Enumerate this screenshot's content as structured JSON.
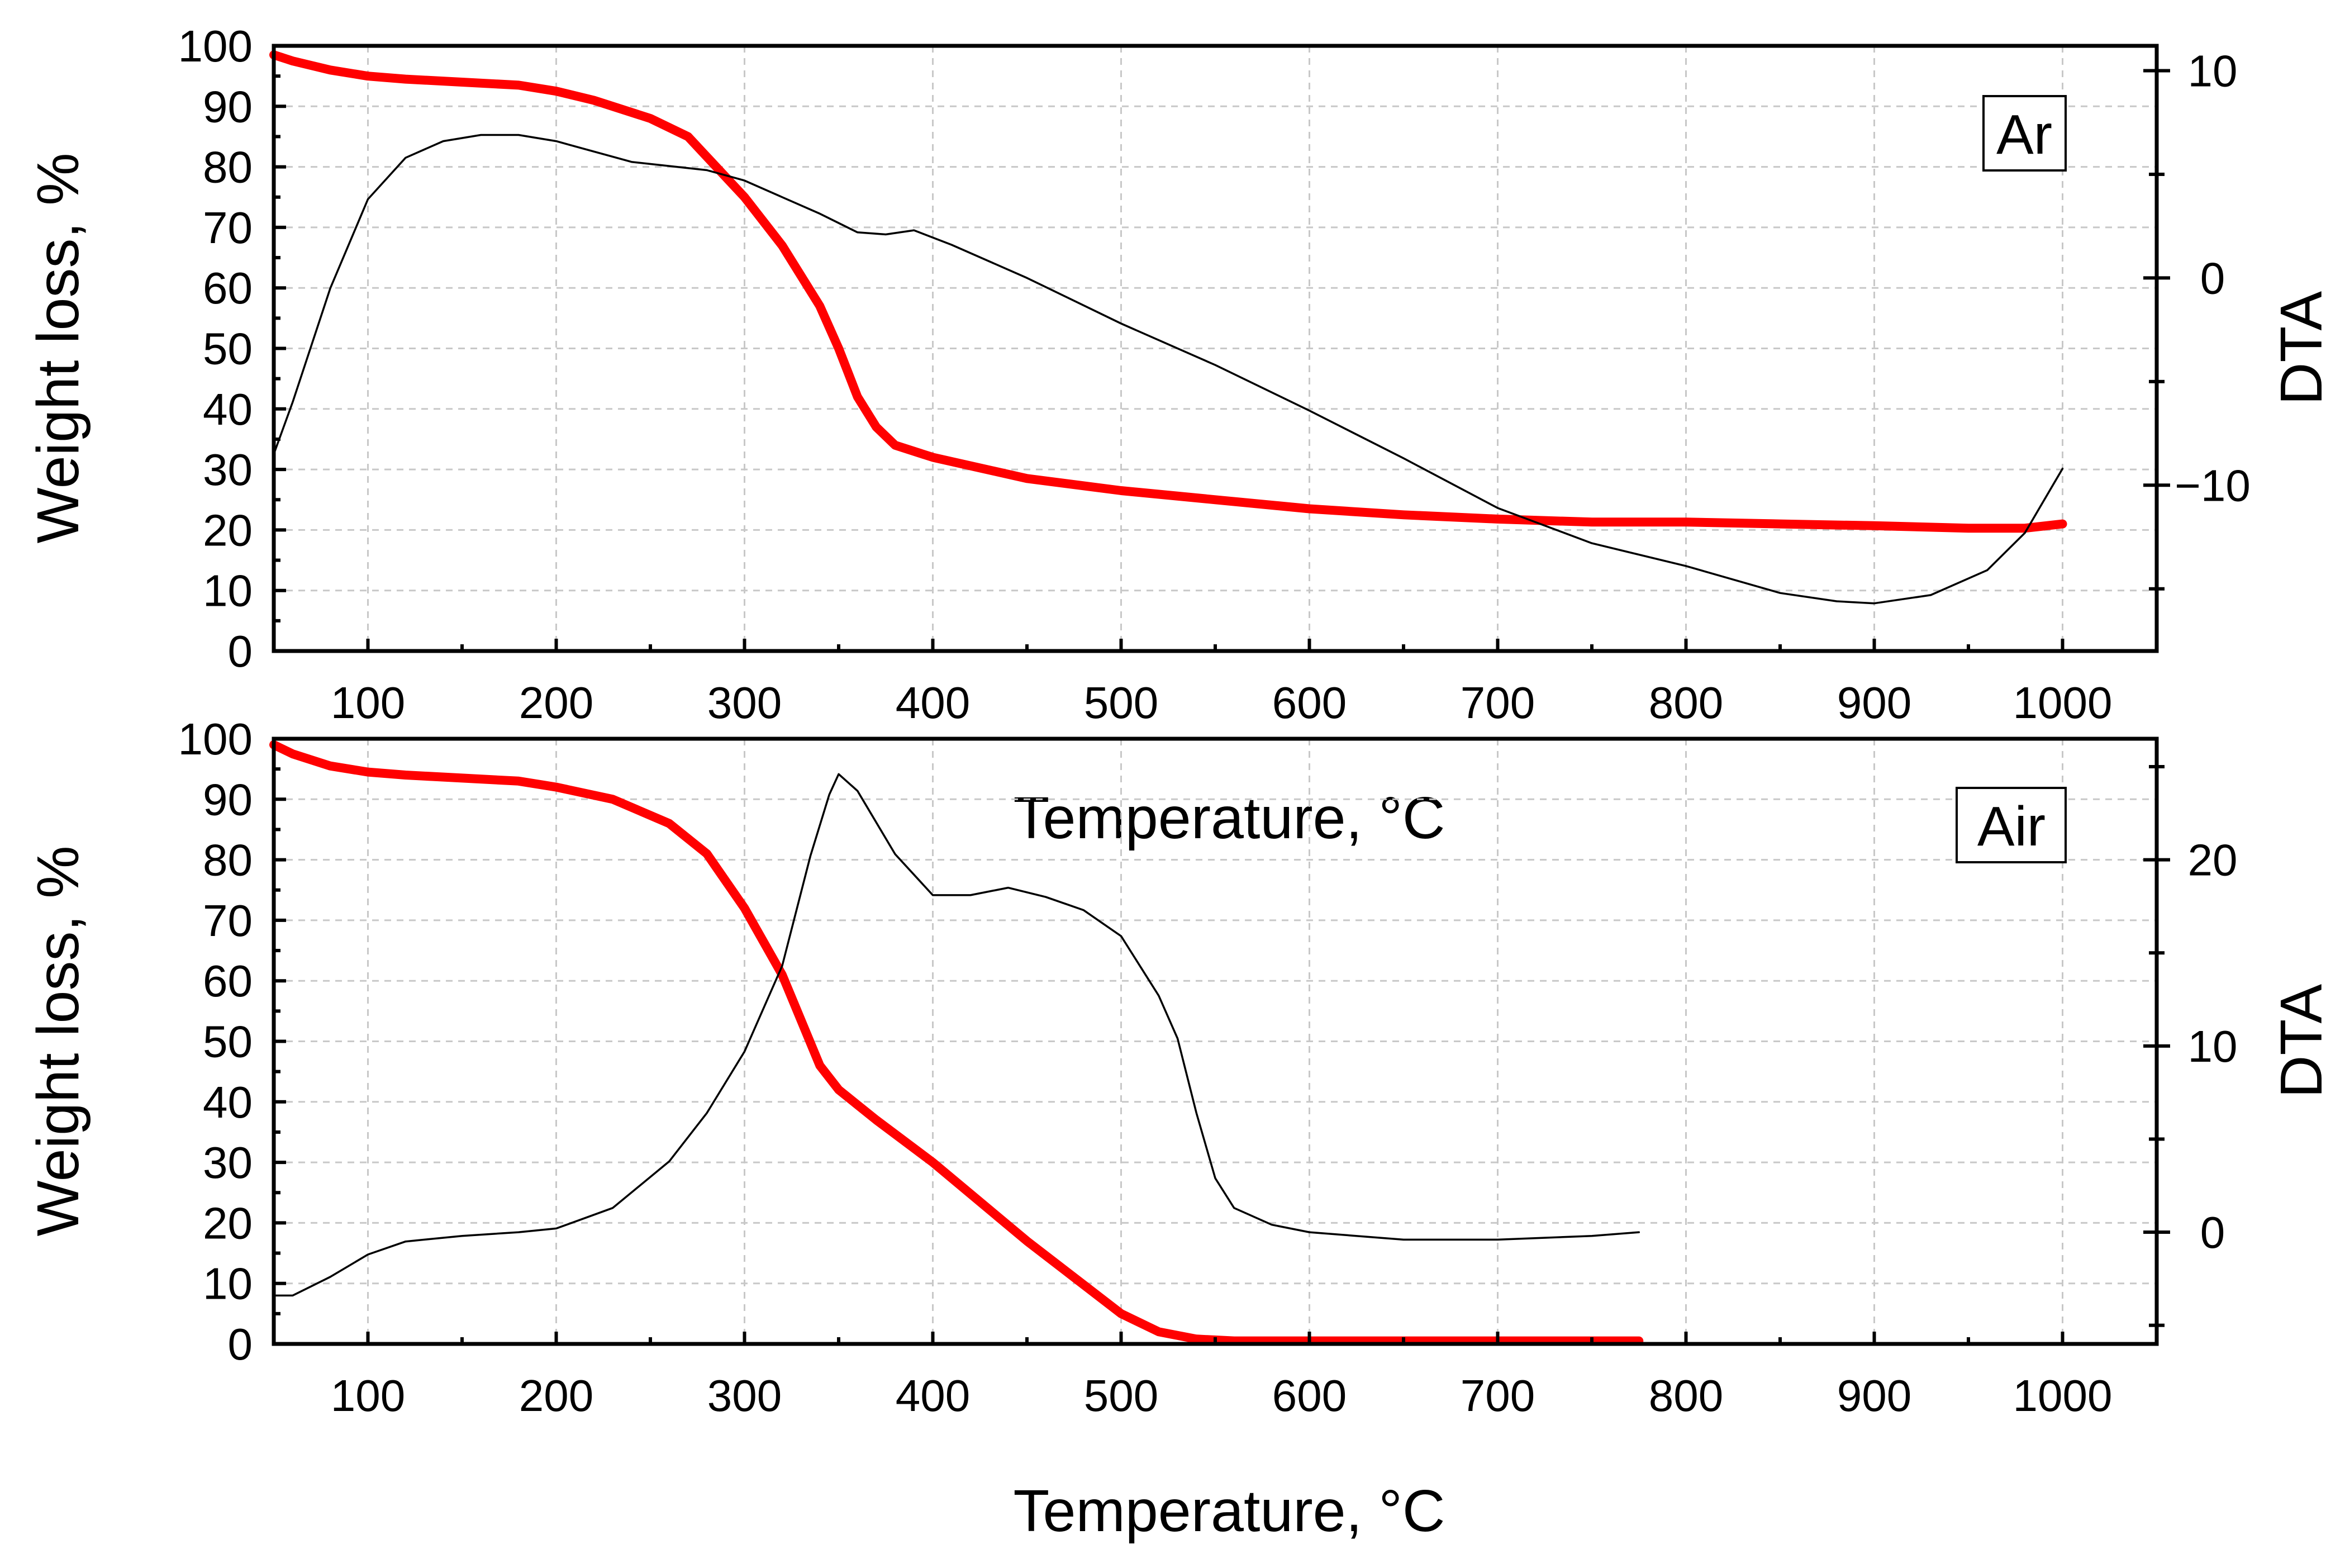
{
  "chart_data": [
    {
      "type": "line",
      "panel": "Ar",
      "panel_label": "Ar",
      "xlabel": "Temperature, °C",
      "ylabel": "Weight loss, %",
      "y2label": "DTA",
      "xlim": [
        50,
        1050
      ],
      "ylim": [
        0,
        100
      ],
      "y2lim": [
        -18,
        11.2
      ],
      "xticks": [
        100,
        200,
        300,
        400,
        500,
        600,
        700,
        800,
        900,
        1000
      ],
      "yticks": [
        0,
        10,
        20,
        30,
        40,
        50,
        60,
        70,
        80,
        90,
        100
      ],
      "y2ticks": [
        10,
        0,
        -10
      ],
      "y2tick_labels": [
        "10",
        "0",
        "−10"
      ],
      "grid": true,
      "series": [
        {
          "name": "Weight loss",
          "axis": "left",
          "color": "#ff0000",
          "x": [
            50,
            60,
            80,
            100,
            120,
            150,
            180,
            200,
            220,
            250,
            270,
            300,
            320,
            340,
            350,
            360,
            370,
            380,
            400,
            450,
            500,
            550,
            600,
            650,
            700,
            750,
            800,
            850,
            900,
            950,
            980,
            1000
          ],
          "y": [
            98.5,
            97.5,
            96,
            95,
            94.5,
            94,
            93.5,
            92.5,
            91,
            88,
            85,
            75,
            67,
            57,
            50,
            42,
            37,
            34,
            32,
            28.5,
            26.5,
            25,
            23.5,
            22.5,
            21.8,
            21.3,
            21.3,
            21.0,
            20.7,
            20.3,
            20.3,
            21.0
          ]
        },
        {
          "name": "DTA",
          "axis": "right",
          "color": "#000000",
          "x": [
            50,
            60,
            80,
            100,
            120,
            140,
            160,
            180,
            200,
            220,
            240,
            260,
            280,
            300,
            320,
            340,
            360,
            375,
            390,
            410,
            450,
            500,
            550,
            600,
            650,
            700,
            750,
            800,
            850,
            880,
            900,
            930,
            960,
            980,
            1000
          ],
          "y": [
            -8.5,
            -6,
            -0.5,
            3.8,
            5.8,
            6.6,
            6.9,
            6.9,
            6.6,
            6.1,
            5.6,
            5.4,
            5.2,
            4.7,
            3.9,
            3.1,
            2.2,
            2.1,
            2.3,
            1.6,
            0,
            -2.2,
            -4.2,
            -6.4,
            -8.7,
            -11.1,
            -12.8,
            -13.9,
            -15.2,
            -15.6,
            -15.7,
            -15.3,
            -14.1,
            -12.3,
            -9.2
          ]
        }
      ]
    },
    {
      "type": "line",
      "panel": "Air",
      "panel_label": "Air",
      "xlabel": "Temperature, °C",
      "ylabel": "Weight loss, %",
      "y2label": "DTA",
      "xlim": [
        50,
        1050
      ],
      "ylim": [
        0,
        100
      ],
      "y2lim": [
        -6,
        26.5
      ],
      "xticks": [
        100,
        200,
        300,
        400,
        500,
        600,
        700,
        800,
        900,
        1000
      ],
      "yticks": [
        0,
        10,
        20,
        30,
        40,
        50,
        60,
        70,
        80,
        90,
        100
      ],
      "y2ticks": [
        20,
        10,
        0
      ],
      "y2tick_labels": [
        "20",
        "10",
        "0"
      ],
      "grid": true,
      "series": [
        {
          "name": "Weight loss",
          "axis": "left",
          "color": "#ff0000",
          "x": [
            50,
            60,
            80,
            100,
            120,
            150,
            180,
            200,
            230,
            260,
            280,
            300,
            320,
            340,
            350,
            370,
            400,
            450,
            500,
            520,
            540,
            560,
            600,
            700,
            775
          ],
          "y": [
            99,
            97.5,
            95.5,
            94.5,
            94,
            93.5,
            93,
            92,
            90,
            86,
            81,
            72,
            61,
            46,
            42,
            37,
            30,
            17,
            5,
            2,
            0.8,
            0.5,
            0.5,
            0.5,
            0.5
          ]
        },
        {
          "name": "DTA",
          "axis": "right",
          "color": "#000000",
          "x": [
            50,
            60,
            80,
            100,
            120,
            150,
            180,
            200,
            230,
            260,
            280,
            300,
            320,
            335,
            345,
            350,
            360,
            380,
            400,
            420,
            440,
            460,
            480,
            500,
            520,
            530,
            540,
            550,
            560,
            580,
            600,
            650,
            700,
            750,
            775
          ],
          "y": [
            -3.4,
            -3.4,
            -2.4,
            -1.2,
            -0.5,
            -0.2,
            0,
            0.2,
            1.3,
            3.8,
            6.4,
            9.7,
            14.3,
            20.2,
            23.5,
            24.6,
            23.7,
            20.3,
            18.1,
            18.1,
            18.5,
            18,
            17.3,
            15.9,
            12.7,
            10.4,
            6.4,
            2.9,
            1.3,
            0.4,
            0,
            -0.4,
            -0.4,
            -0.2,
            0
          ]
        }
      ]
    }
  ]
}
